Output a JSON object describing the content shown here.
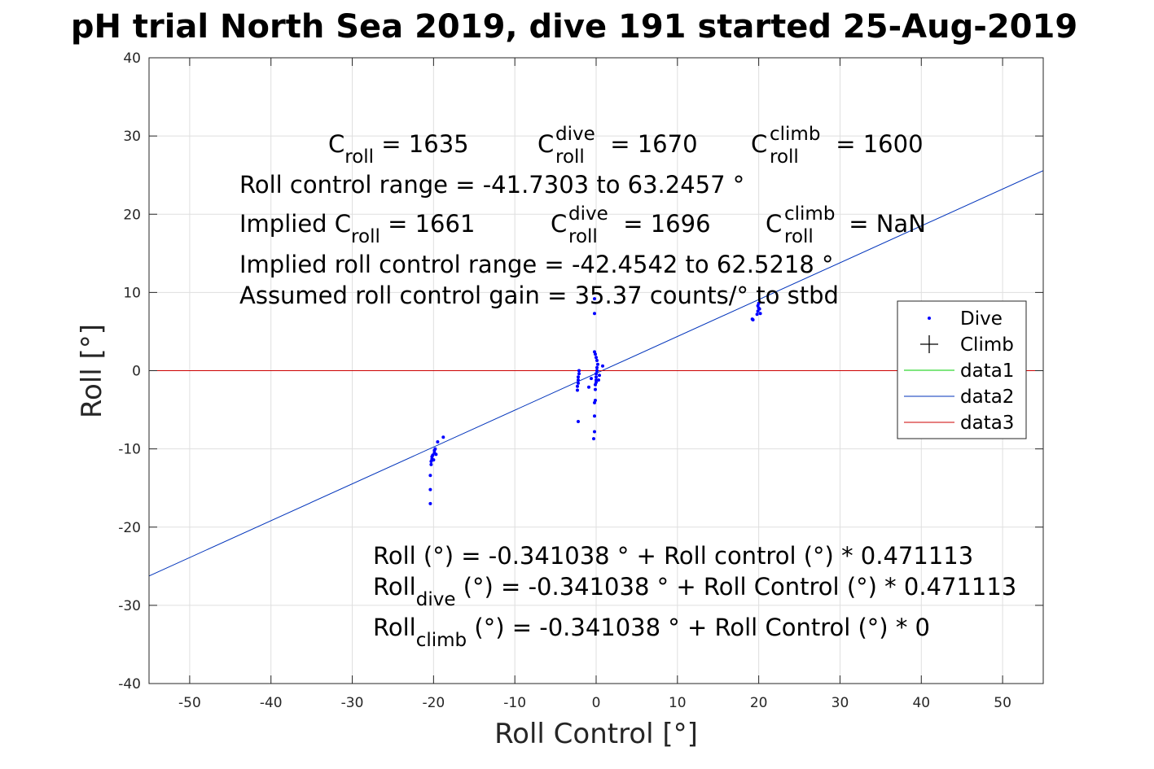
{
  "chart_data": {
    "type": "scatter",
    "title": "pH trial North Sea 2019, dive 191 started 25-Aug-2019",
    "xlabel": "Roll Control [°]",
    "ylabel": "Roll [°]",
    "xlim": [
      -55,
      55
    ],
    "ylim": [
      -40,
      40
    ],
    "xticks": [
      -50,
      -40,
      -30,
      -20,
      -10,
      0,
      10,
      20,
      30,
      40,
      50
    ],
    "yticks": [
      -40,
      -30,
      -20,
      -10,
      0,
      10,
      20,
      30,
      40
    ],
    "grid": true,
    "legend_position": "right",
    "series": [
      {
        "name": "Dive",
        "type": "scatter",
        "marker": "dot",
        "color": "#0000ff",
        "points": [
          [
            -20.4,
            -17.0
          ],
          [
            -20.4,
            -15.2
          ],
          [
            -20.4,
            -13.4
          ],
          [
            -20.3,
            -12.0
          ],
          [
            -20.3,
            -11.6
          ],
          [
            -20.2,
            -11.3
          ],
          [
            -20.2,
            -11.0
          ],
          [
            -20.1,
            -10.8
          ],
          [
            -20.0,
            -11.4
          ],
          [
            -19.9,
            -10.5
          ],
          [
            -19.9,
            -10.2
          ],
          [
            -19.8,
            -10.0
          ],
          [
            -19.7,
            -10.7
          ],
          [
            -19.5,
            -9.1
          ],
          [
            -18.8,
            -8.5
          ],
          [
            -2.2,
            -6.5
          ],
          [
            -2.3,
            -2.5
          ],
          [
            -2.3,
            -2.0
          ],
          [
            -2.2,
            -1.6
          ],
          [
            -2.2,
            -1.2
          ],
          [
            -2.2,
            -0.8
          ],
          [
            -2.1,
            -0.4
          ],
          [
            -2.1,
            0.0
          ],
          [
            -0.9,
            -2.1
          ],
          [
            -0.6,
            -1.0
          ],
          [
            -0.3,
            -8.7
          ],
          [
            -0.2,
            -7.8
          ],
          [
            -0.2,
            -5.8
          ],
          [
            -0.2,
            -4.1
          ],
          [
            -0.1,
            -3.8
          ],
          [
            -0.1,
            -2.4
          ],
          [
            -0.1,
            -1.8
          ],
          [
            0.0,
            -1.5
          ],
          [
            0.0,
            -1.2
          ],
          [
            0.0,
            -0.8
          ],
          [
            0.0,
            -0.4
          ],
          [
            0.1,
            0.0
          ],
          [
            0.1,
            0.4
          ],
          [
            0.2,
            0.8
          ],
          [
            0.1,
            1.3
          ],
          [
            0.0,
            1.7
          ],
          [
            -0.1,
            2.1
          ],
          [
            -0.2,
            2.4
          ],
          [
            0.3,
            -1.2
          ],
          [
            0.4,
            -0.6
          ],
          [
            0.8,
            0.6
          ],
          [
            -0.2,
            7.3
          ],
          [
            -0.2,
            9.2
          ],
          [
            19.2,
            6.6
          ],
          [
            19.3,
            6.5
          ],
          [
            19.8,
            7.2
          ],
          [
            19.9,
            7.6
          ],
          [
            20.0,
            8.0
          ],
          [
            19.9,
            8.3
          ],
          [
            20.0,
            8.6
          ],
          [
            20.1,
            7.9
          ],
          [
            20.2,
            7.3
          ]
        ]
      },
      {
        "name": "Climb",
        "type": "scatter",
        "marker": "plus",
        "color": "#000000",
        "points": []
      },
      {
        "name": "data1",
        "type": "line",
        "color": "#00cc00",
        "points": []
      },
      {
        "name": "data2",
        "type": "line",
        "color": "#0033bb",
        "points": [
          [
            -55,
            -26.25
          ],
          [
            55,
            25.57
          ]
        ]
      },
      {
        "name": "data3",
        "type": "line",
        "color": "#cc0000",
        "points": [
          [
            -55,
            0
          ],
          [
            55,
            0
          ]
        ]
      }
    ],
    "annotations": {
      "c_roll_label": "C",
      "c_roll_sub": "roll",
      "c_roll_value": " = 1635",
      "c_dive_label": "C",
      "c_dive_sup": "dive",
      "c_dive_sub": "roll",
      "c_dive_value": " = 1670",
      "c_climb_label": "C",
      "c_climb_sup": "climb",
      "c_climb_sub": "roll",
      "c_climb_value": " = 1600",
      "range_line": "Roll control range = -41.7303 to 63.2457 °",
      "implied_c_prefix": "Implied C",
      "implied_c_sub": "roll",
      "implied_c_value": " = 1661",
      "implied_dive_label": "C",
      "implied_dive_sup": "dive",
      "implied_dive_sub": "roll",
      "implied_dive_value": " = 1696",
      "implied_climb_label": "C",
      "implied_climb_sup": "climb",
      "implied_climb_sub": "roll",
      "implied_climb_value": " =  NaN",
      "implied_range_line": "Implied roll control range = -42.4542 to 62.5218 °",
      "gain_line": "Assumed roll control gain = 35.37 counts/° to stbd",
      "fit_line": "Roll (°) = -0.341038 ° + Roll control (°) * 0.471113",
      "fit_dive_prefix": "Roll",
      "fit_dive_sub": "dive",
      "fit_dive_rest": " (°) = -0.341038 ° + Roll Control (°) * 0.471113",
      "fit_climb_prefix": "Roll",
      "fit_climb_sub": "climb",
      "fit_climb_rest": " (°) = -0.341038 ° + Roll Control (°) * 0"
    }
  }
}
